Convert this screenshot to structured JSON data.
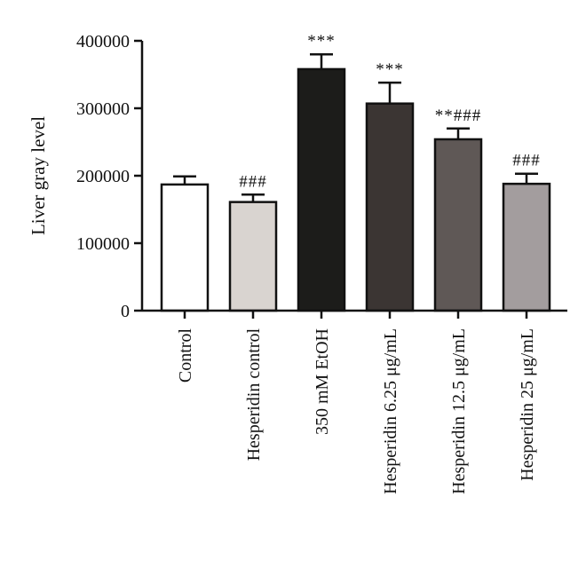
{
  "chart_data": {
    "type": "bar",
    "title": "",
    "xlabel": "",
    "ylabel": "Liver gray level",
    "ylim": [
      0,
      400000
    ],
    "yticks": [
      0,
      100000,
      200000,
      300000,
      400000
    ],
    "ytick_labels": [
      "0",
      "100000",
      "200000",
      "300000",
      "400000"
    ],
    "categories": [
      "Control",
      "Hesperidin control",
      "350 mM EtOH",
      "Hesperidin 6.25 μg/mL",
      "Hesperidin 12.5 μg/mL",
      "Hesperidin 25 μg/mL"
    ],
    "values": [
      187000,
      161000,
      358000,
      307000,
      254000,
      188000
    ],
    "error": [
      12000,
      11000,
      22000,
      31000,
      16000,
      15000
    ],
    "significance": [
      "",
      "###",
      "***",
      "***",
      "**###",
      "###"
    ],
    "bar_colors": [
      "#ffffff",
      "#d9d4d0",
      "#1c1c1a",
      "#3b3533",
      "#5f5856",
      "#a39d9e"
    ],
    "grid": false,
    "legend": "none"
  }
}
